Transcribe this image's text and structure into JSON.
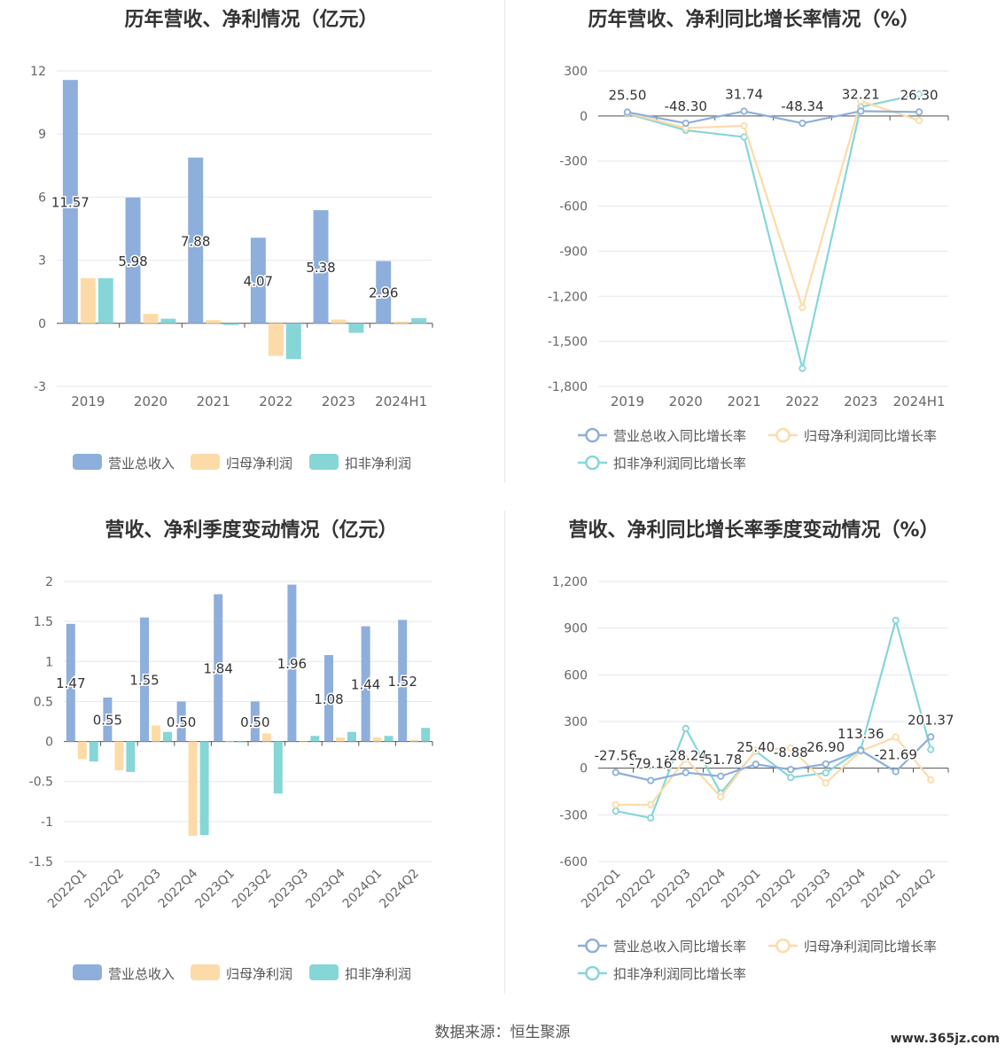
{
  "charts": [
    {
      "title": "历年营收、净利情况（亿元）",
      "chart_data": {
        "type": "bar",
        "categories": [
          "2019",
          "2020",
          "2021",
          "2022",
          "2023",
          "2024H1"
        ],
        "ylim": [
          -3,
          12
        ],
        "yticks": [
          "12",
          "9",
          "6",
          "3",
          "0",
          "-3"
        ],
        "series": [
          {
            "name": "营业总收入",
            "color": "#8eaedc",
            "values": [
              11.57,
              5.98,
              7.88,
              4.07,
              5.38,
              2.96
            ],
            "labels": [
              "11.57",
              "5.98",
              "7.88",
              "4.07",
              "5.38",
              "2.96"
            ]
          },
          {
            "name": "归母净利润",
            "color": "#fddba8",
            "values": [
              2.15,
              0.45,
              0.15,
              -1.55,
              0.18,
              0.08
            ]
          },
          {
            "name": "扣非净利润",
            "color": "#86d6d8",
            "values": [
              2.15,
              0.22,
              -0.08,
              -1.7,
              -0.45,
              0.25
            ]
          }
        ]
      }
    },
    {
      "title": "历年营收、净利同比增长率情况（%）",
      "chart_data": {
        "type": "line",
        "categories": [
          "2019",
          "2020",
          "2021",
          "2022",
          "2023",
          "2024H1"
        ],
        "ylim": [
          -1800,
          300
        ],
        "yticks": [
          "300",
          "0",
          "-300",
          "-600",
          "-900",
          "-1,200",
          "-1,500",
          "-1,800"
        ],
        "series": [
          {
            "name": "营业总收入同比增长率",
            "color": "#8eaedc",
            "values": [
              25.5,
              -48.3,
              31.74,
              -48.34,
              32.21,
              26.3
            ],
            "labels": [
              "25.50",
              "-48.30",
              "31.74",
              "-48.34",
              "32.21",
              "26.30"
            ]
          },
          {
            "name": "归母净利润同比增长率",
            "color": "#fddba8",
            "values": [
              20,
              -80,
              -65,
              -1275,
              100,
              -30
            ]
          },
          {
            "name": "扣非净利润同比增长率",
            "color": "#86d6d8",
            "values": [
              15,
              -95,
              -140,
              -1680,
              60,
              145
            ]
          }
        ]
      }
    },
    {
      "title": "营收、净利季度变动情况（亿元）",
      "chart_data": {
        "type": "bar",
        "categories": [
          "2022Q1",
          "2022Q2",
          "2022Q3",
          "2022Q4",
          "2023Q1",
          "2023Q2",
          "2023Q3",
          "2023Q4",
          "2024Q1",
          "2024Q2"
        ],
        "ylim": [
          -1.5,
          2
        ],
        "yticks": [
          "2",
          "1.5",
          "1",
          "0.5",
          "0",
          "-0.5",
          "-1",
          "-1.5"
        ],
        "series": [
          {
            "name": "营业总收入",
            "color": "#8eaedc",
            "values": [
              1.47,
              0.55,
              1.55,
              0.5,
              1.84,
              0.5,
              1.96,
              1.08,
              1.44,
              1.52
            ],
            "labels": [
              "1.47",
              "0.55",
              "1.55",
              "0.50",
              "1.84",
              "0.50",
              "1.96",
              "1.08",
              "1.44",
              "1.52"
            ]
          },
          {
            "name": "归母净利润",
            "color": "#fddba8",
            "values": [
              -0.22,
              -0.36,
              0.2,
              -1.18,
              0.01,
              0.1,
              0.0,
              0.05,
              0.05,
              0.02
            ]
          },
          {
            "name": "扣非净利润",
            "color": "#86d6d8",
            "values": [
              -0.25,
              -0.38,
              0.12,
              -1.17,
              0.0,
              -0.65,
              0.07,
              0.12,
              0.07,
              0.17
            ]
          }
        ]
      }
    },
    {
      "title": "营收、净利同比增长率季度变动情况（%）",
      "chart_data": {
        "type": "line",
        "categories": [
          "2022Q1",
          "2022Q2",
          "2022Q3",
          "2022Q4",
          "2023Q1",
          "2023Q2",
          "2023Q3",
          "2023Q4",
          "2024Q1",
          "2024Q2"
        ],
        "ylim": [
          -600,
          1200
        ],
        "yticks": [
          "1,200",
          "900",
          "600",
          "300",
          "0",
          "-300",
          "-600"
        ],
        "series": [
          {
            "name": "营业总收入同比增长率",
            "color": "#8eaedc",
            "values": [
              -27.56,
              -79.16,
              -28.24,
              -51.78,
              25.4,
              -8.88,
              26.9,
              113.36,
              -21.69,
              201.37
            ],
            "labels": [
              "-27.56",
              "-79.16",
              "-28.24",
              "-51.78",
              "25.40",
              "-8.88",
              "26.90",
              "113.36",
              "-21.69",
              "201.37"
            ]
          },
          {
            "name": "归母净利润同比增长率",
            "color": "#fddba8",
            "values": [
              -235,
              -235,
              60,
              -185,
              115,
              130,
              -95,
              110,
              200,
              -75
            ]
          },
          {
            "name": "扣非净利润同比增长率",
            "color": "#86d6d8",
            "values": [
              -275,
              -320,
              255,
              -160,
              110,
              -60,
              -30,
              120,
              950,
              120
            ]
          }
        ]
      }
    }
  ],
  "source": "数据来源：恒生聚源",
  "watermark": "www.365jz.com"
}
